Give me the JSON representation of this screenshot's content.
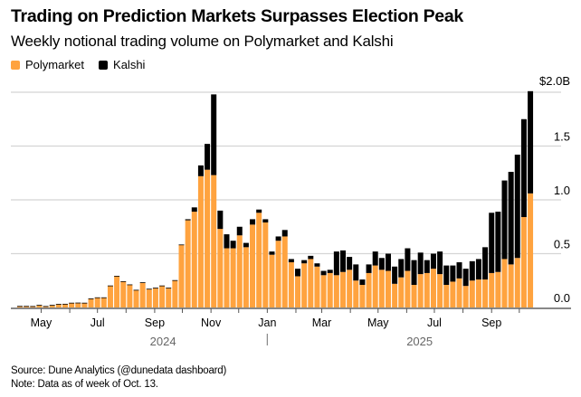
{
  "colors": {
    "polymarket": "#ffa33f",
    "kalshi": "#000000",
    "grid": "#d4d4d4",
    "axis": "#888888",
    "year": "#666666"
  },
  "chart_data": {
    "type": "bar",
    "stacked": true,
    "title": "Trading on Prediction Markets Surpasses Election Peak",
    "subtitle": "Weekly notional trading volume on Polymarket and Kalshi",
    "ylabel": "",
    "xlabel": "",
    "ylim": [
      0,
      2.0
    ],
    "yticks": [
      {
        "v": 0,
        "label": "0.0"
      },
      {
        "v": 0.5,
        "label": "0.5"
      },
      {
        "v": 1.0,
        "label": "1.0"
      },
      {
        "v": 1.5,
        "label": "1.5"
      },
      {
        "v": 2.0,
        "label": "$2.0B"
      }
    ],
    "legend": {
      "position": "top-left",
      "entries": [
        "Polymarket",
        "Kalshi"
      ]
    },
    "categories": [
      "2024-04-08",
      "2024-04-15",
      "2024-04-22",
      "2024-04-29",
      "2024-05-06",
      "2024-05-13",
      "2024-05-20",
      "2024-05-27",
      "2024-06-03",
      "2024-06-10",
      "2024-06-17",
      "2024-06-24",
      "2024-07-01",
      "2024-07-08",
      "2024-07-15",
      "2024-07-22",
      "2024-07-29",
      "2024-08-05",
      "2024-08-12",
      "2024-08-19",
      "2024-08-26",
      "2024-09-02",
      "2024-09-09",
      "2024-09-16",
      "2024-09-23",
      "2024-09-30",
      "2024-10-07",
      "2024-10-14",
      "2024-10-21",
      "2024-10-28",
      "2024-11-04",
      "2024-11-11",
      "2024-11-18",
      "2024-11-25",
      "2024-12-02",
      "2024-12-09",
      "2024-12-16",
      "2024-12-23",
      "2024-12-30",
      "2025-01-06",
      "2025-01-13",
      "2025-01-20",
      "2025-01-27",
      "2025-02-03",
      "2025-02-10",
      "2025-02-17",
      "2025-02-24",
      "2025-03-03",
      "2025-03-10",
      "2025-03-17",
      "2025-03-24",
      "2025-03-31",
      "2025-04-07",
      "2025-04-14",
      "2025-04-21",
      "2025-04-28",
      "2025-05-05",
      "2025-05-12",
      "2025-05-19",
      "2025-05-26",
      "2025-06-02",
      "2025-06-09",
      "2025-06-16",
      "2025-06-23",
      "2025-06-30",
      "2025-07-07",
      "2025-07-14",
      "2025-07-21",
      "2025-07-28",
      "2025-08-04",
      "2025-08-11",
      "2025-08-18",
      "2025-08-25",
      "2025-09-01",
      "2025-09-08",
      "2025-09-15",
      "2025-09-22",
      "2025-09-29",
      "2025-10-06",
      "2025-10-13"
    ],
    "series": [
      {
        "name": "Polymarket",
        "values": [
          0.01,
          0.01,
          0.01,
          0.02,
          0.01,
          0.02,
          0.03,
          0.03,
          0.04,
          0.04,
          0.04,
          0.08,
          0.09,
          0.09,
          0.2,
          0.29,
          0.24,
          0.21,
          0.16,
          0.23,
          0.17,
          0.18,
          0.2,
          0.18,
          0.25,
          0.58,
          0.81,
          0.89,
          1.22,
          1.28,
          1.23,
          0.73,
          0.55,
          0.55,
          0.67,
          0.56,
          0.77,
          0.88,
          0.79,
          0.49,
          0.62,
          0.66,
          0.42,
          0.29,
          0.41,
          0.45,
          0.38,
          0.3,
          0.32,
          0.3,
          0.33,
          0.35,
          0.25,
          0.21,
          0.32,
          0.39,
          0.35,
          0.34,
          0.22,
          0.28,
          0.34,
          0.21,
          0.31,
          0.32,
          0.36,
          0.31,
          0.21,
          0.24,
          0.27,
          0.2,
          0.25,
          0.26,
          0.26,
          0.32,
          0.33,
          0.45,
          0.4,
          0.46,
          0.84,
          1.06
        ]
      },
      {
        "name": "Kalshi",
        "values": [
          0.004,
          0.004,
          0.003,
          0.004,
          0.003,
          0.004,
          0.003,
          0.004,
          0.004,
          0.005,
          0.004,
          0.004,
          0.004,
          0.004,
          0.004,
          0.004,
          0.004,
          0.004,
          0.004,
          0.004,
          0.004,
          0.004,
          0.004,
          0.004,
          0.004,
          0.005,
          0.01,
          0.04,
          0.1,
          0.24,
          0.75,
          0.17,
          0.13,
          0.07,
          0.08,
          0.04,
          0.05,
          0.03,
          0.03,
          0.03,
          0.04,
          0.06,
          0.03,
          0.07,
          0.03,
          0.03,
          0.03,
          0.04,
          0.03,
          0.22,
          0.2,
          0.12,
          0.15,
          0.05,
          0.08,
          0.13,
          0.11,
          0.16,
          0.16,
          0.17,
          0.21,
          0.23,
          0.2,
          0.12,
          0.14,
          0.21,
          0.18,
          0.15,
          0.15,
          0.16,
          0.18,
          0.19,
          0.3,
          0.56,
          0.56,
          0.73,
          0.86,
          0.96,
          0.91,
          0.95
        ]
      }
    ],
    "xticks": [
      {
        "date": "2024-05-01",
        "label": "May"
      },
      {
        "date": "2024-06-01",
        "label": ""
      },
      {
        "date": "2024-07-01",
        "label": "Jul"
      },
      {
        "date": "2024-08-01",
        "label": ""
      },
      {
        "date": "2024-09-01",
        "label": "Sep"
      },
      {
        "date": "2024-10-01",
        "label": ""
      },
      {
        "date": "2024-11-01",
        "label": "Nov"
      },
      {
        "date": "2024-12-01",
        "label": ""
      },
      {
        "date": "2025-01-01",
        "label": "Jan"
      },
      {
        "date": "2025-02-01",
        "label": ""
      },
      {
        "date": "2025-03-01",
        "label": "Mar"
      },
      {
        "date": "2025-04-01",
        "label": ""
      },
      {
        "date": "2025-05-01",
        "label": "May"
      },
      {
        "date": "2025-06-01",
        "label": ""
      },
      {
        "date": "2025-07-01",
        "label": "Jul"
      },
      {
        "date": "2025-08-01",
        "label": ""
      },
      {
        "date": "2025-09-01",
        "label": "Sep"
      },
      {
        "date": "2025-10-01",
        "label": ""
      }
    ],
    "years": [
      {
        "date": "2024-09-10",
        "label": "2024"
      },
      {
        "date": "2025-06-15",
        "label": "2025"
      }
    ],
    "year_divider": "2025-01-01"
  },
  "footer": {
    "source": "Source: Dune Analytics (@dunedata dashboard)",
    "note": "Note: Data as of week of Oct. 13."
  }
}
